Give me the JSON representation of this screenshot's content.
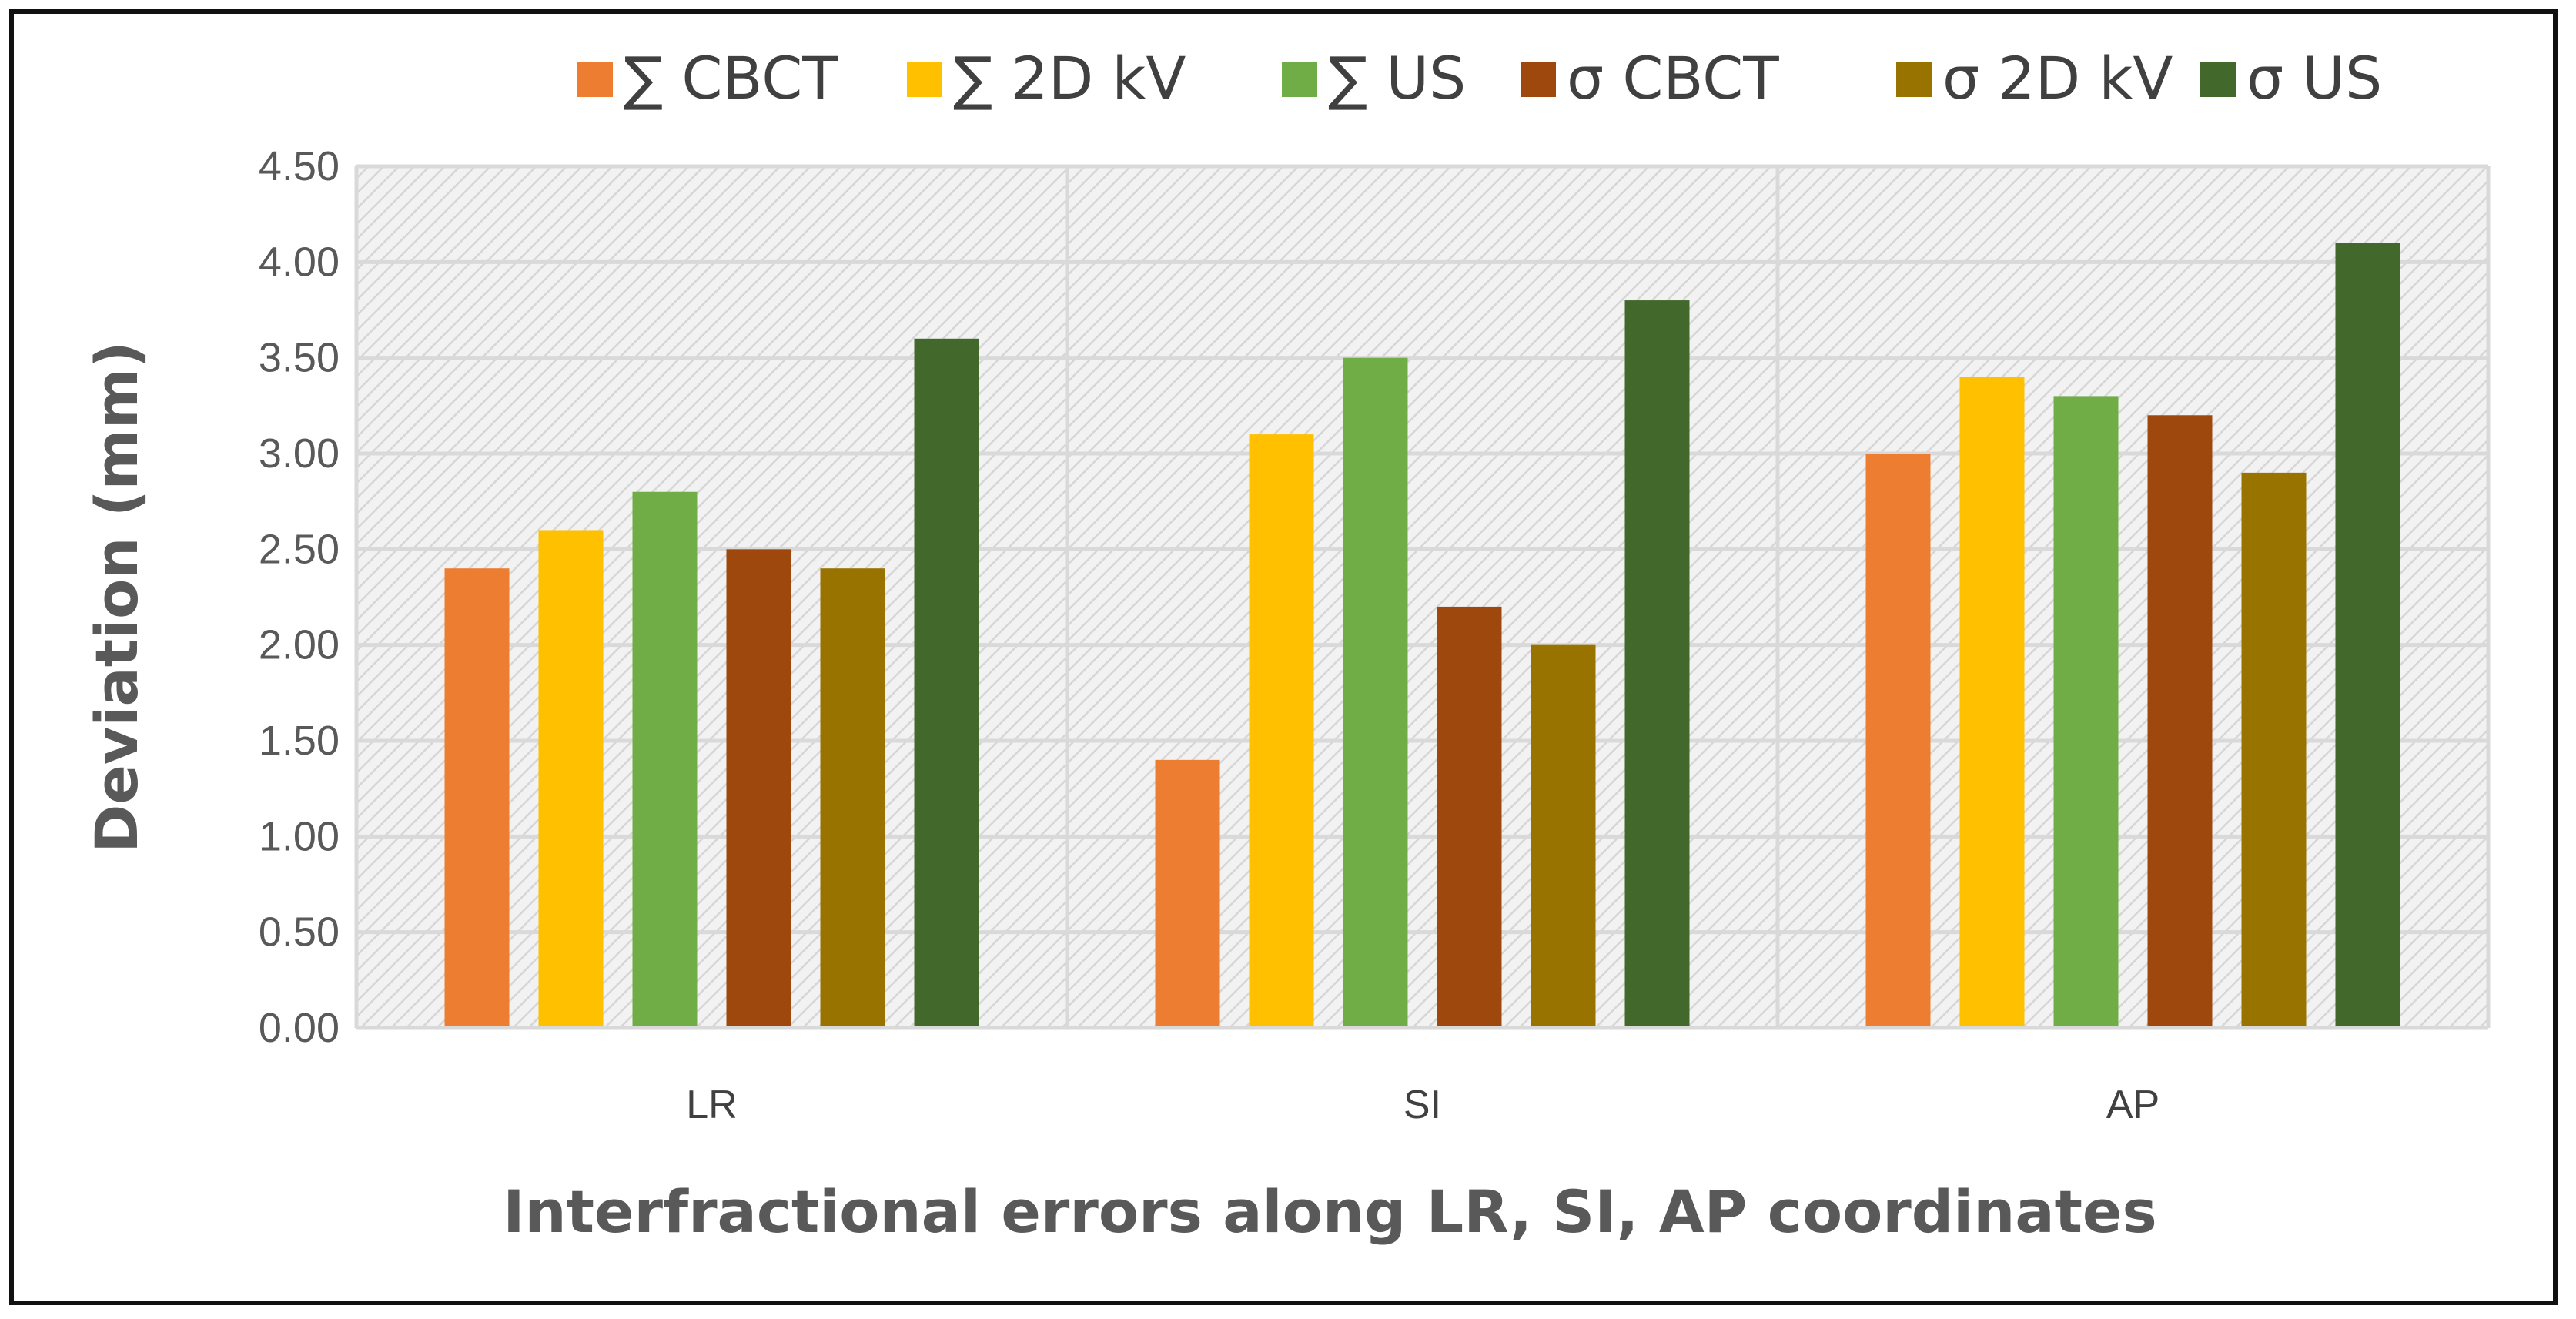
{
  "chart_data": {
    "type": "bar",
    "title": "",
    "categories": [
      "LR",
      "SI",
      "AP"
    ],
    "series": [
      {
        "name": "∑ CBCT",
        "color": "#ED7D31",
        "values": [
          2.4,
          1.4,
          3.0
        ]
      },
      {
        "name": "∑ 2D kV",
        "color": "#FFC000",
        "values": [
          2.6,
          3.1,
          3.4
        ]
      },
      {
        "name": "∑ US",
        "color": "#70AD47",
        "values": [
          2.8,
          3.5,
          3.3
        ]
      },
      {
        "name": "σ CBCT",
        "color": "#9E480E",
        "values": [
          2.5,
          2.2,
          3.2
        ]
      },
      {
        "name": "σ 2D kV",
        "color": "#997300",
        "values": [
          2.4,
          2.0,
          2.9
        ]
      },
      {
        "name": "σ US",
        "color": "#43682B",
        "values": [
          3.6,
          3.8,
          4.1
        ]
      }
    ],
    "xlabel": "Interfractional errors along LR, SI, AP coordinates",
    "ylabel": "Deviation (mm)",
    "ylim": [
      0,
      4.5
    ],
    "yticks": [
      "0.00",
      "0.50",
      "1.00",
      "1.50",
      "2.00",
      "2.50",
      "3.00",
      "3.50",
      "4.00",
      "4.50"
    ],
    "grid": true,
    "legend_position": "top"
  }
}
